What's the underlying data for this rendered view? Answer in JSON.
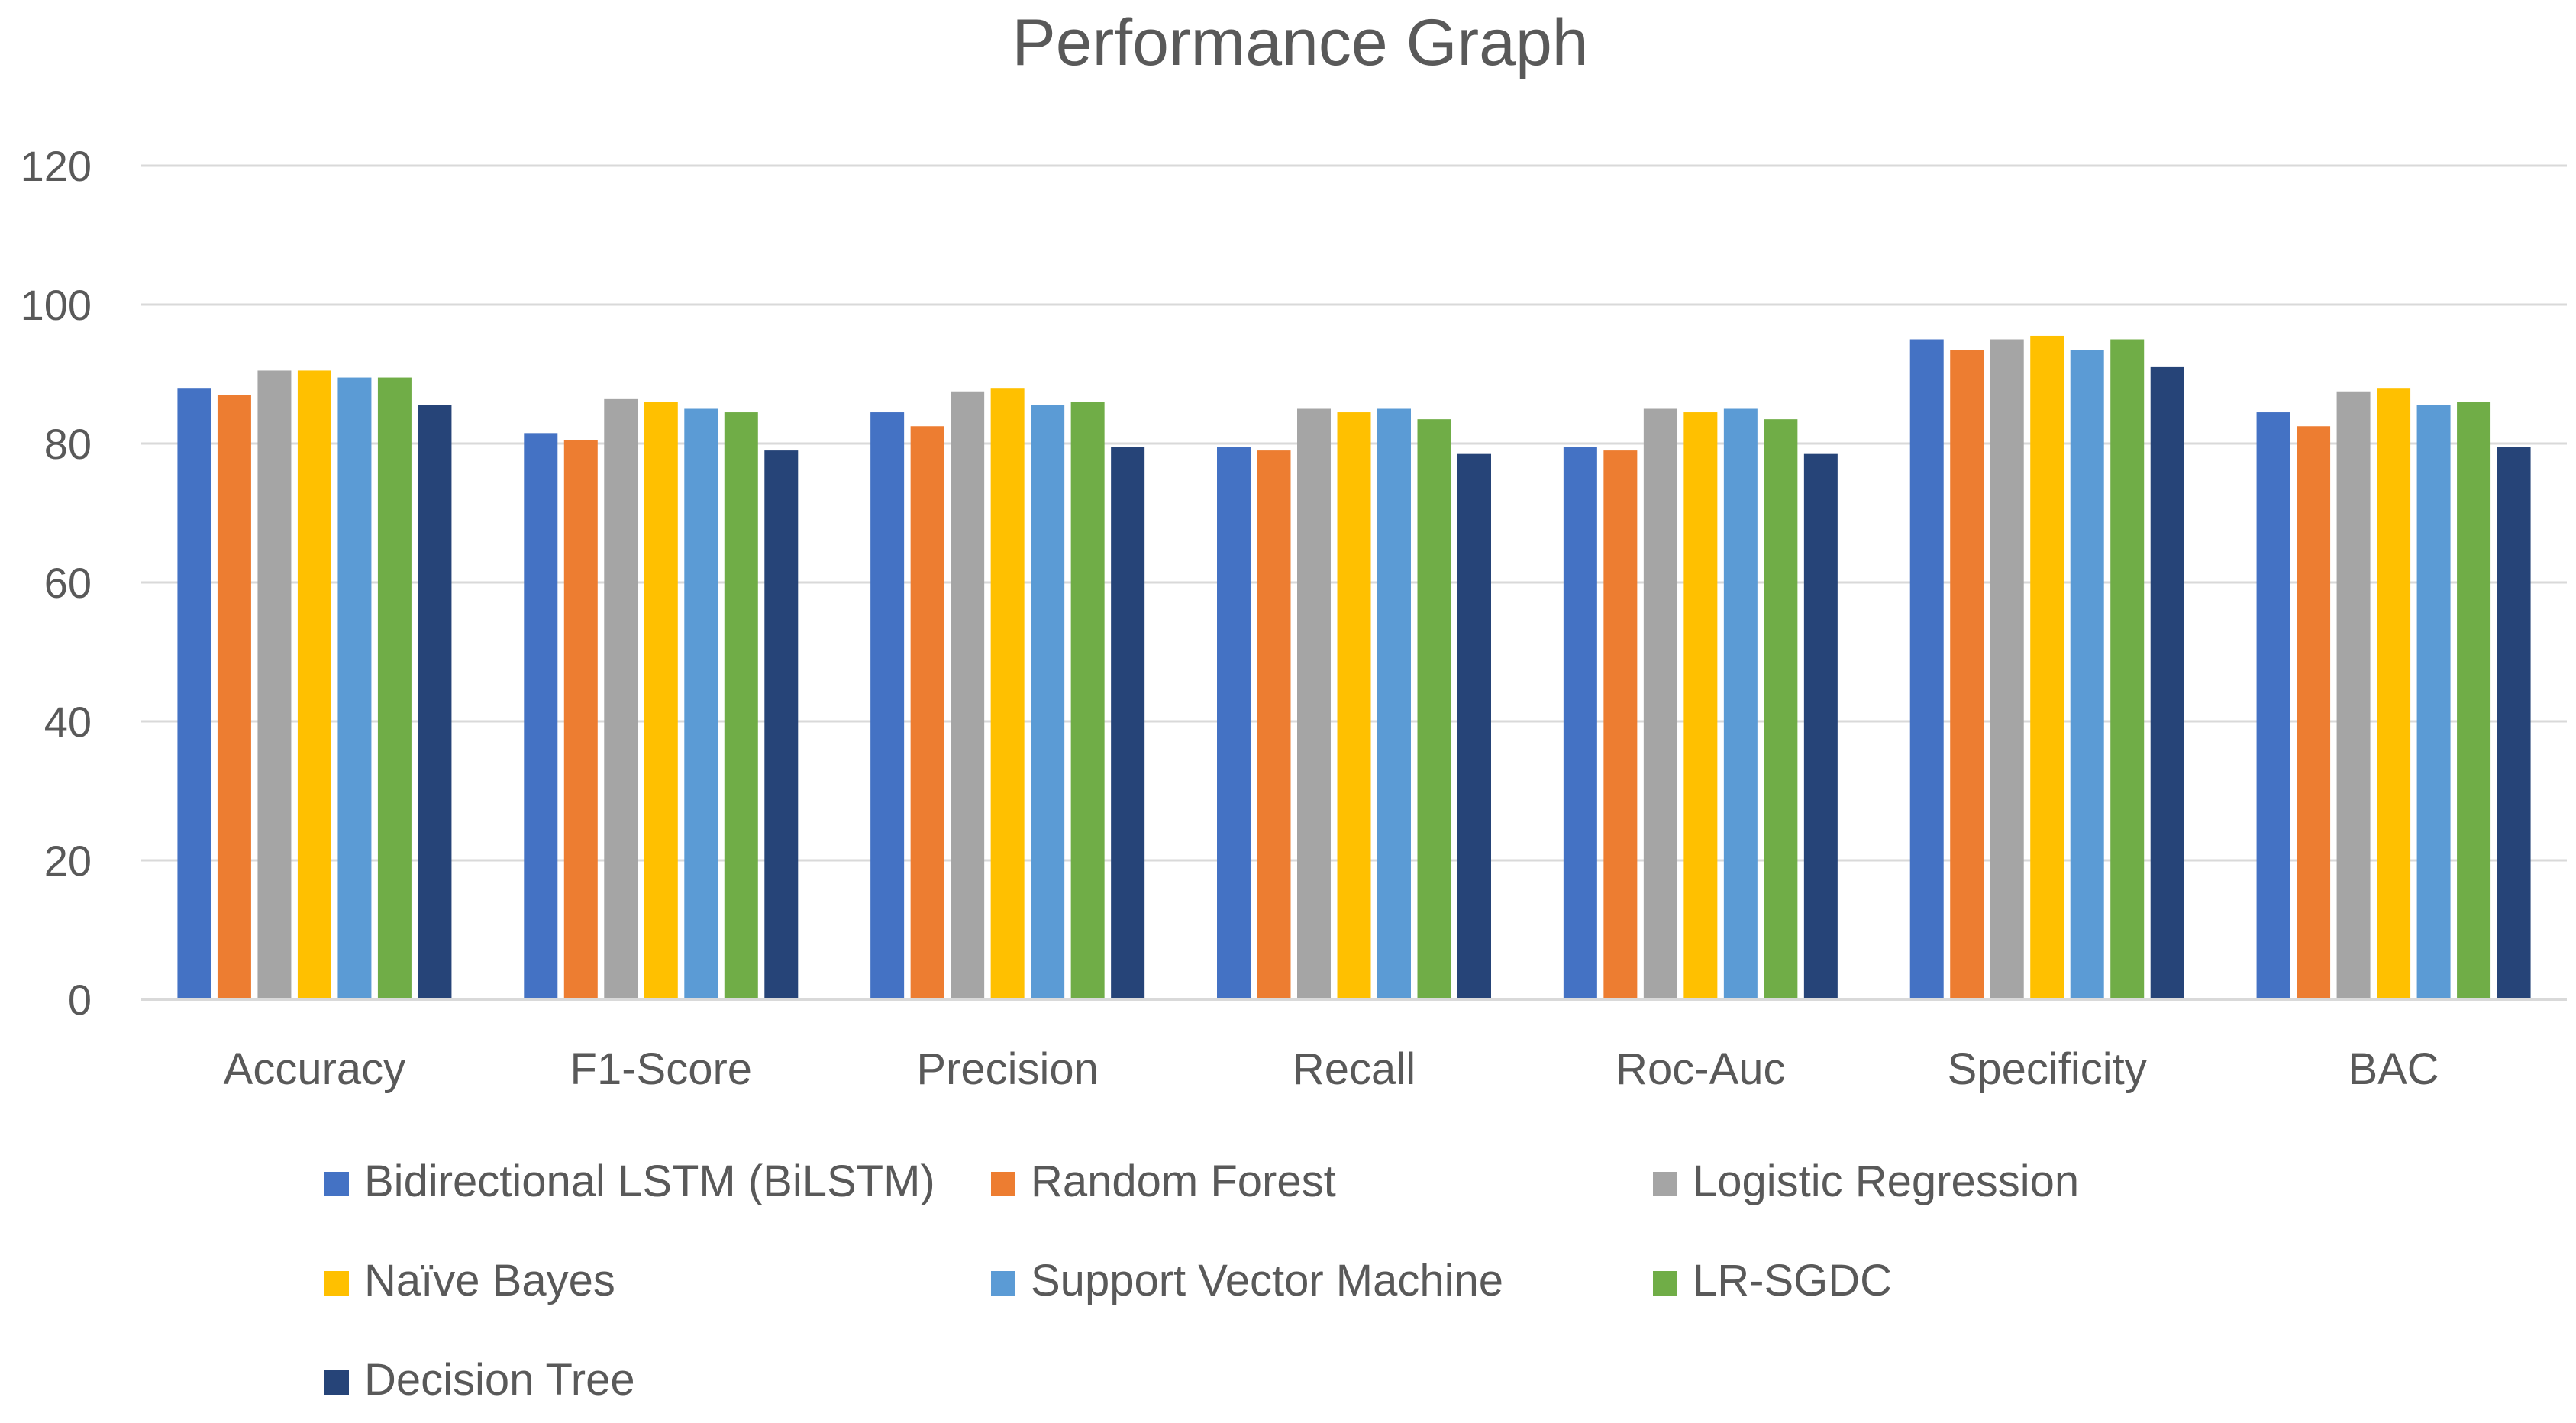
{
  "chart_data": {
    "type": "bar",
    "title": "Performance Graph",
    "xlabel": "",
    "ylabel": "",
    "ylim": [
      0,
      120
    ],
    "yticks": [
      "0",
      "20",
      "40",
      "60",
      "80",
      "100",
      "120"
    ],
    "grid": true,
    "legend_position": "bottom",
    "categories": [
      "Accuracy",
      "F1-Score",
      "Precision",
      "Recall",
      "Roc-Auc",
      "Specificity",
      "BAC"
    ],
    "series": [
      {
        "name": "Bidirectional LSTM (BiLSTM)",
        "color": "#4472C4",
        "values": [
          88,
          81.5,
          84.5,
          79.5,
          79.5,
          95,
          84.5
        ]
      },
      {
        "name": "Random Forest",
        "color": "#ED7D31",
        "values": [
          87,
          80.5,
          82.5,
          79,
          79,
          93.5,
          82.5
        ]
      },
      {
        "name": "Logistic Regression",
        "color": "#A5A5A5",
        "values": [
          90.5,
          86.5,
          87.5,
          85,
          85,
          95,
          87.5
        ]
      },
      {
        "name": "Naïve Bayes",
        "color": "#FFC000",
        "values": [
          90.5,
          86,
          88,
          84.5,
          84.5,
          95.5,
          88
        ]
      },
      {
        "name": "Support Vector Machine",
        "color": "#5B9BD5",
        "values": [
          89.5,
          85,
          85.5,
          85,
          85,
          93.5,
          85.5
        ]
      },
      {
        "name": "LR-SGDC",
        "color": "#70AD47",
        "values": [
          89.5,
          84.5,
          86,
          83.5,
          83.5,
          95,
          86
        ]
      },
      {
        "name": "Decision Tree",
        "color": "#264478",
        "values": [
          85.5,
          79,
          79.5,
          78.5,
          78.5,
          91,
          79.5
        ]
      }
    ]
  }
}
